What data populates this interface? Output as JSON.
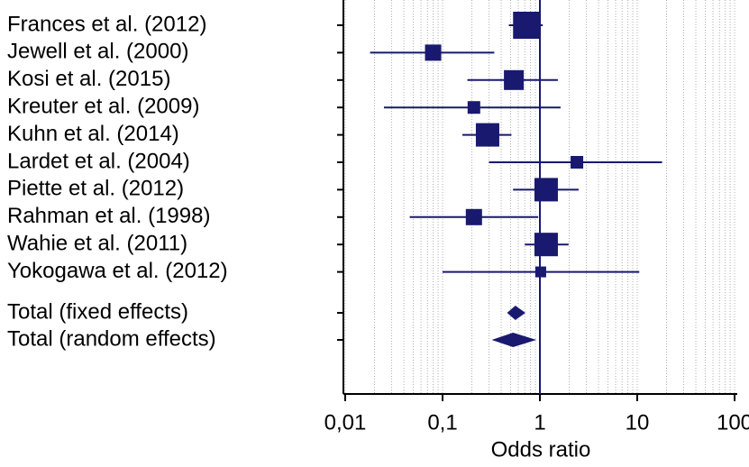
{
  "chart_data": {
    "type": "forest",
    "x_label": "Odds ratio",
    "log_x": true,
    "grid": true,
    "color": "#191970",
    "xlim": [
      0.01,
      100
    ],
    "xticks": [
      {
        "value": 0.01,
        "label": "0,01"
      },
      {
        "value": 0.1,
        "label": "0,1"
      },
      1,
      10,
      100
    ],
    "minor_xticks": [
      0.02,
      0.03,
      0.04,
      0.05,
      0.06,
      0.07,
      0.08,
      0.09,
      0.2,
      0.3,
      0.4,
      0.5,
      0.6,
      0.7,
      0.8,
      0.9,
      2,
      3,
      4,
      5,
      6,
      7,
      8,
      9,
      20,
      30,
      40,
      50,
      60,
      70,
      80,
      90
    ],
    "reference": 1,
    "categories": [
      "Frances et al. (2012)",
      "Jewell et al. (2000)",
      "Kosi et al. (2015)",
      "Kreuter et al. (2009)",
      "Kuhn et al. (2014)",
      "Lardet et al. (2004)",
      "Piette et al. (2012)",
      "Rahman et al. (1998)",
      "Wahie et al. (2011)",
      "Yokogawa et al. (2012)"
    ],
    "values": [
      0.73,
      0.08,
      0.54,
      0.21,
      0.29,
      2.4,
      1.16,
      0.21,
      1.16,
      1.02
    ],
    "lower": [
      0.48,
      0.018,
      0.18,
      0.025,
      0.16,
      0.3,
      0.53,
      0.046,
      0.7,
      0.1
    ],
    "upper": [
      1.07,
      0.34,
      1.53,
      1.63,
      0.51,
      18,
      2.5,
      0.96,
      1.97,
      10.5
    ],
    "weights": [
      30,
      18,
      22,
      14,
      26,
      14,
      26,
      18,
      26,
      12
    ],
    "pooled": {
      "categories": [
        "Total (fixed effects)",
        "Total (random effects)"
      ],
      "values": [
        0.56,
        0.53
      ],
      "lower": [
        0.46,
        0.32
      ],
      "upper": [
        0.71,
        0.92
      ]
    }
  }
}
